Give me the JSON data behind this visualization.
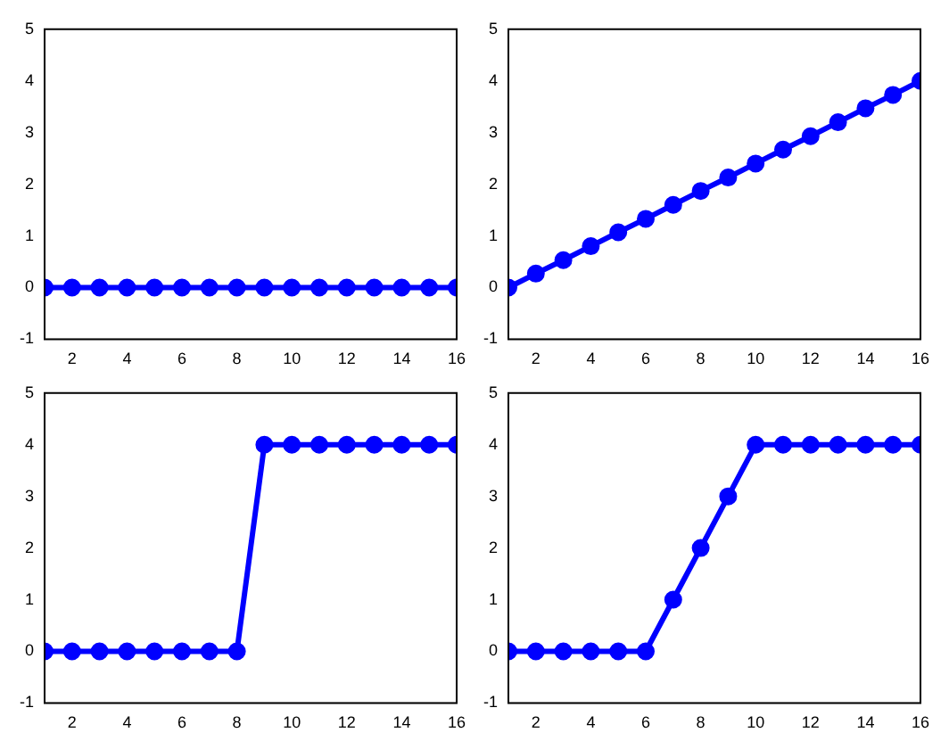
{
  "chart_data": [
    {
      "type": "line",
      "x": [
        1,
        2,
        3,
        4,
        5,
        6,
        7,
        8,
        9,
        10,
        11,
        12,
        13,
        14,
        15,
        16
      ],
      "values": [
        0,
        0,
        0,
        0,
        0,
        0,
        0,
        0,
        0,
        0,
        0,
        0,
        0,
        0,
        0,
        0
      ],
      "color": "#0000ff",
      "marker": "circle",
      "xlim": [
        1,
        16
      ],
      "ylim": [
        -1,
        5
      ],
      "xticks": [
        2,
        4,
        6,
        8,
        10,
        12,
        14,
        16
      ],
      "yticks": [
        -1,
        0,
        1,
        2,
        3,
        4,
        5
      ]
    },
    {
      "type": "line",
      "x": [
        1,
        2,
        3,
        4,
        5,
        6,
        7,
        8,
        9,
        10,
        11,
        12,
        13,
        14,
        15,
        16
      ],
      "values": [
        0,
        0.27,
        0.53,
        0.8,
        1.07,
        1.33,
        1.6,
        1.87,
        2.13,
        2.4,
        2.67,
        2.93,
        3.2,
        3.47,
        3.73,
        4
      ],
      "color": "#0000ff",
      "marker": "circle",
      "xlim": [
        1,
        16
      ],
      "ylim": [
        -1,
        5
      ],
      "xticks": [
        2,
        4,
        6,
        8,
        10,
        12,
        14,
        16
      ],
      "yticks": [
        -1,
        0,
        1,
        2,
        3,
        4,
        5
      ]
    },
    {
      "type": "line",
      "x": [
        1,
        2,
        3,
        4,
        5,
        6,
        7,
        8,
        9,
        10,
        11,
        12,
        13,
        14,
        15,
        16
      ],
      "values": [
        0,
        0,
        0,
        0,
        0,
        0,
        0,
        0,
        4,
        4,
        4,
        4,
        4,
        4,
        4,
        4
      ],
      "color": "#0000ff",
      "marker": "circle",
      "xlim": [
        1,
        16
      ],
      "ylim": [
        -1,
        5
      ],
      "xticks": [
        2,
        4,
        6,
        8,
        10,
        12,
        14,
        16
      ],
      "yticks": [
        -1,
        0,
        1,
        2,
        3,
        4,
        5
      ]
    },
    {
      "type": "line",
      "x": [
        1,
        2,
        3,
        4,
        5,
        6,
        7,
        8,
        9,
        10,
        11,
        12,
        13,
        14,
        15,
        16
      ],
      "values": [
        0,
        0,
        0,
        0,
        0,
        0,
        1,
        2,
        3,
        4,
        4,
        4,
        4,
        4,
        4,
        4
      ],
      "color": "#0000ff",
      "marker": "circle",
      "xlim": [
        1,
        16
      ],
      "ylim": [
        -1,
        5
      ],
      "xticks": [
        2,
        4,
        6,
        8,
        10,
        12,
        14,
        16
      ],
      "yticks": [
        -1,
        0,
        1,
        2,
        3,
        4,
        5
      ]
    }
  ]
}
